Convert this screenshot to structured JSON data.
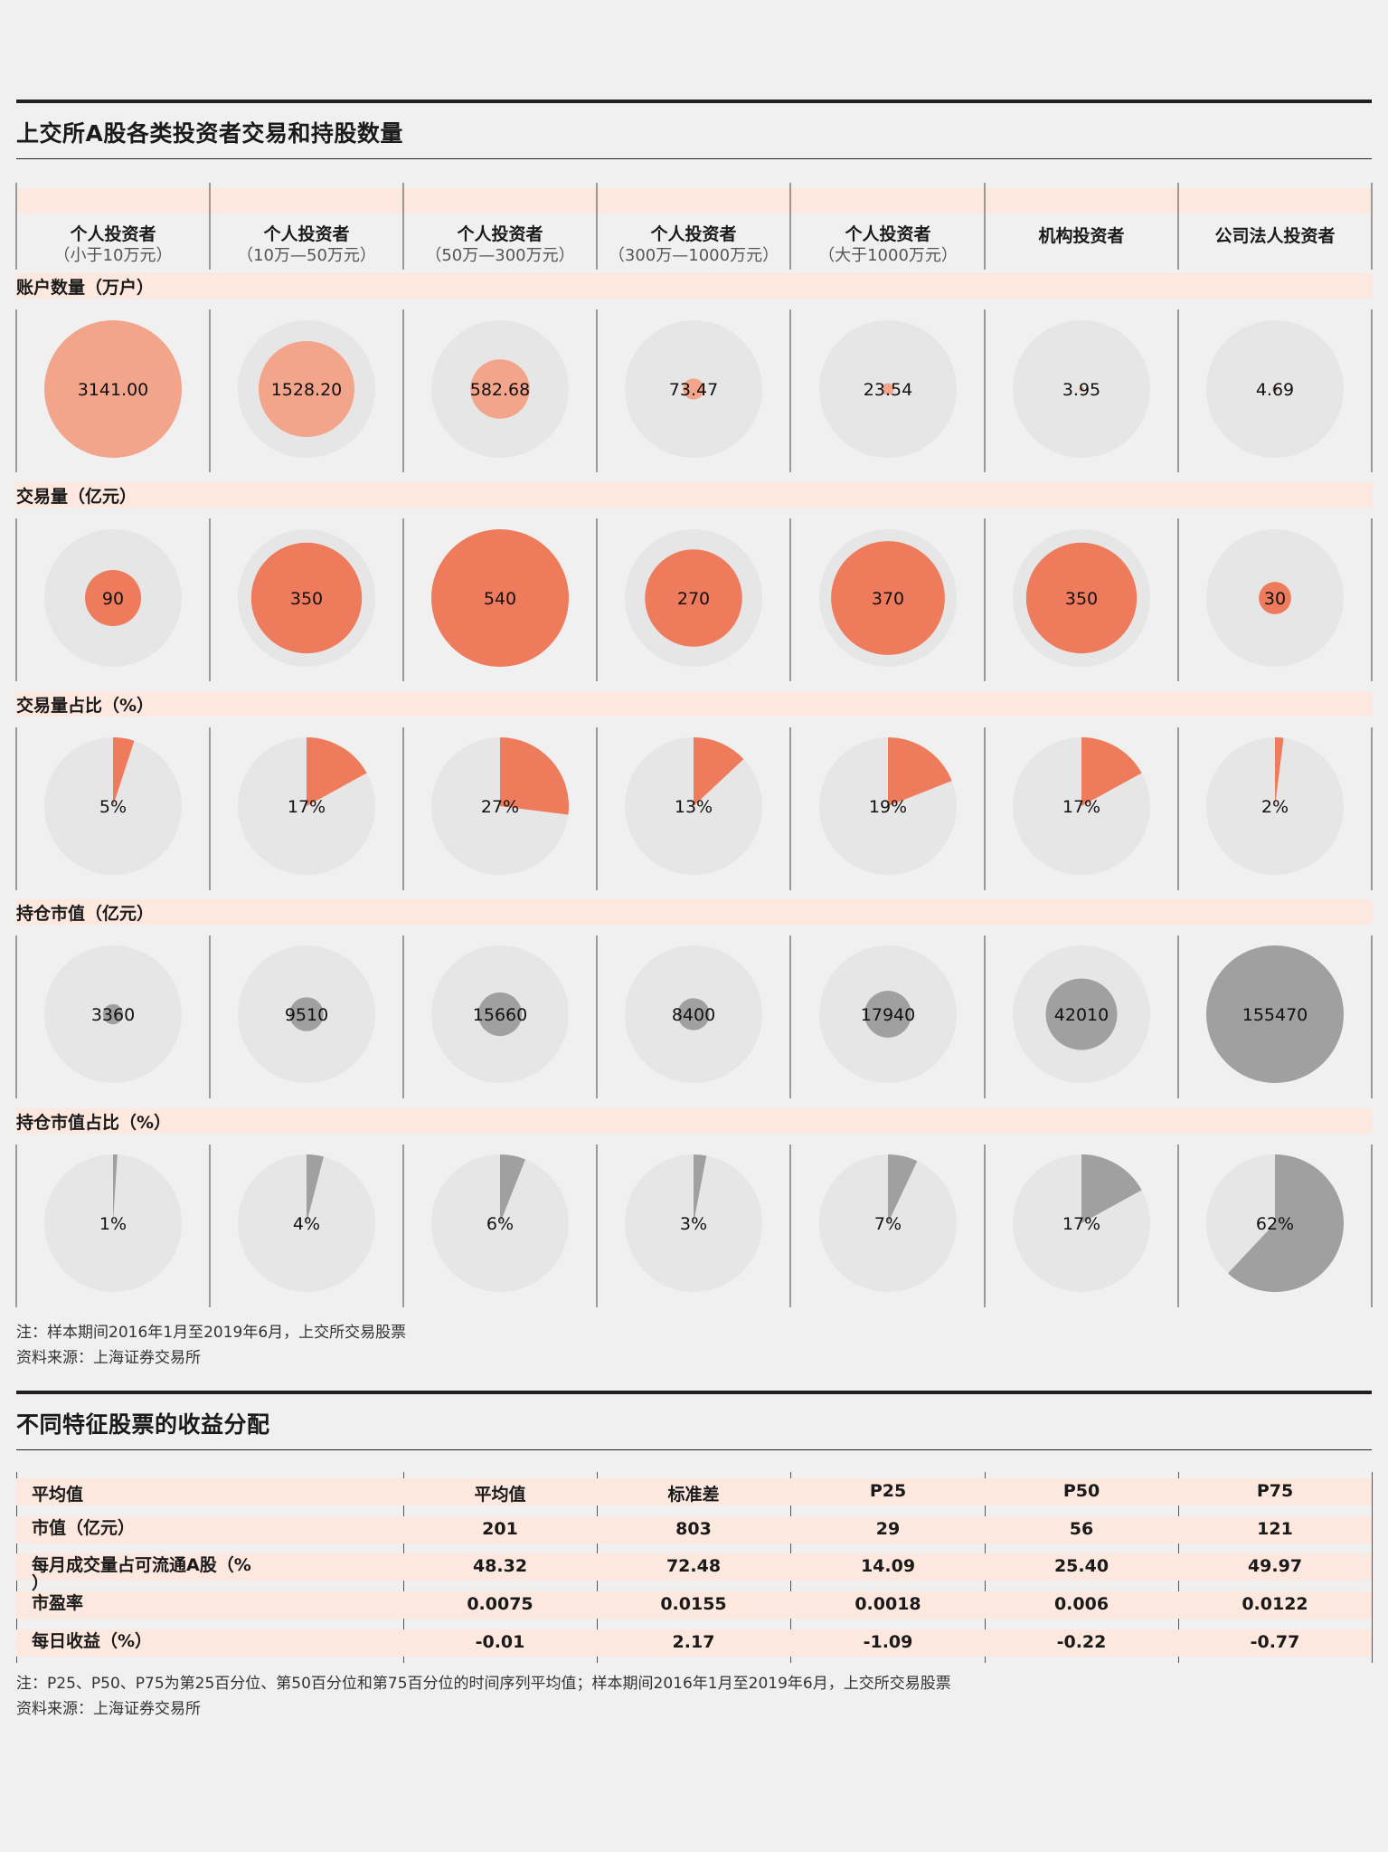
{
  "chart_data": [
    {
      "type": "bubble-matrix",
      "title": "上交所A股各类投资者交易和持股数量",
      "categories": [
        {
          "name": "个人投资者",
          "sub": "（小于10万元）"
        },
        {
          "name": "个人投资者",
          "sub": "（10万—50万元）"
        },
        {
          "name": "个人投资者",
          "sub": "（50万—300万元）"
        },
        {
          "name": "个人投资者",
          "sub": "（300万—1000万元）"
        },
        {
          "name": "个人投资者",
          "sub": "（大于1000万元）"
        },
        {
          "name": "机构投资者",
          "sub": ""
        },
        {
          "name": "公司法人投资者",
          "sub": ""
        }
      ],
      "rows": [
        {
          "label": "账户数量（万户）",
          "kind": "bubble",
          "color": "#f2a58a",
          "values": [
            3141.0,
            1528.2,
            582.68,
            73.47,
            23.54,
            3.95,
            4.69
          ],
          "display": [
            "3141.00",
            "1528.20",
            "582.68",
            "73.47",
            "23.54",
            "3.95",
            "4.69"
          ]
        },
        {
          "label": "交易量（亿元）",
          "kind": "bubble",
          "color": "#ee7b5c",
          "values": [
            90,
            350,
            540,
            270,
            370,
            350,
            30
          ],
          "display": [
            "90",
            "350",
            "540",
            "270",
            "370",
            "350",
            "30"
          ]
        },
        {
          "label": "交易量占比（%）",
          "kind": "pie",
          "color": "#ee7b5c",
          "values": [
            5,
            17,
            27,
            13,
            19,
            17,
            2
          ],
          "display": [
            "5%",
            "17%",
            "27%",
            "13%",
            "19%",
            "17%",
            "2%"
          ]
        },
        {
          "label": "持仓市值（亿元）",
          "kind": "bubble",
          "color": "#a0a0a0",
          "values": [
            3360,
            9510,
            15660,
            8400,
            17940,
            42010,
            155470
          ],
          "display": [
            "3360",
            "9510",
            "15660",
            "8400",
            "17940",
            "42010",
            "155470"
          ]
        },
        {
          "label": "持仓市值占比（%）",
          "kind": "pie",
          "color": "#a0a0a0",
          "values": [
            1,
            4,
            6,
            3,
            7,
            17,
            62
          ],
          "display": [
            "1%",
            "4%",
            "6%",
            "3%",
            "7%",
            "17%",
            "62%"
          ]
        }
      ]
    },
    {
      "type": "table",
      "title": "不同特征股票的收益分配",
      "columns": [
        "平均值",
        "平均值",
        "标准差",
        "P25",
        "P50",
        "P75"
      ],
      "rows": [
        {
          "label": "市值（亿元）",
          "values": [
            "201",
            "803",
            "29",
            "56",
            "121"
          ]
        },
        {
          "label": "每月成交量占可流通A股（%\n）",
          "values": [
            "48.32",
            "72.48",
            "14.09",
            "25.40",
            "49.97"
          ]
        },
        {
          "label": "市盈率",
          "values": [
            "0.0075",
            "0.0155",
            "0.0018",
            "0.006",
            "0.0122"
          ]
        },
        {
          "label": "每日收益（%）",
          "values": [
            "-0.01",
            "2.17",
            "-1.09",
            "-0.22",
            "-0.77"
          ]
        }
      ]
    }
  ],
  "notes": {
    "chart1_note": "注：样本期间2016年1月至2019年6月，上交所交易股票",
    "chart1_source": "资料来源：上海证券交易所",
    "chart2_note": "注：P25、P50、P75为第25百分位、第50百分位和第75百分位的时间序列平均值；样本期间2016年1月至2019年6月，上交所交易股票",
    "chart2_source": "资料来源：上海证券交易所"
  },
  "colors": {
    "band": "#fce8de",
    "bg_circle": "#e6e6e6",
    "rule": "#231f20"
  }
}
